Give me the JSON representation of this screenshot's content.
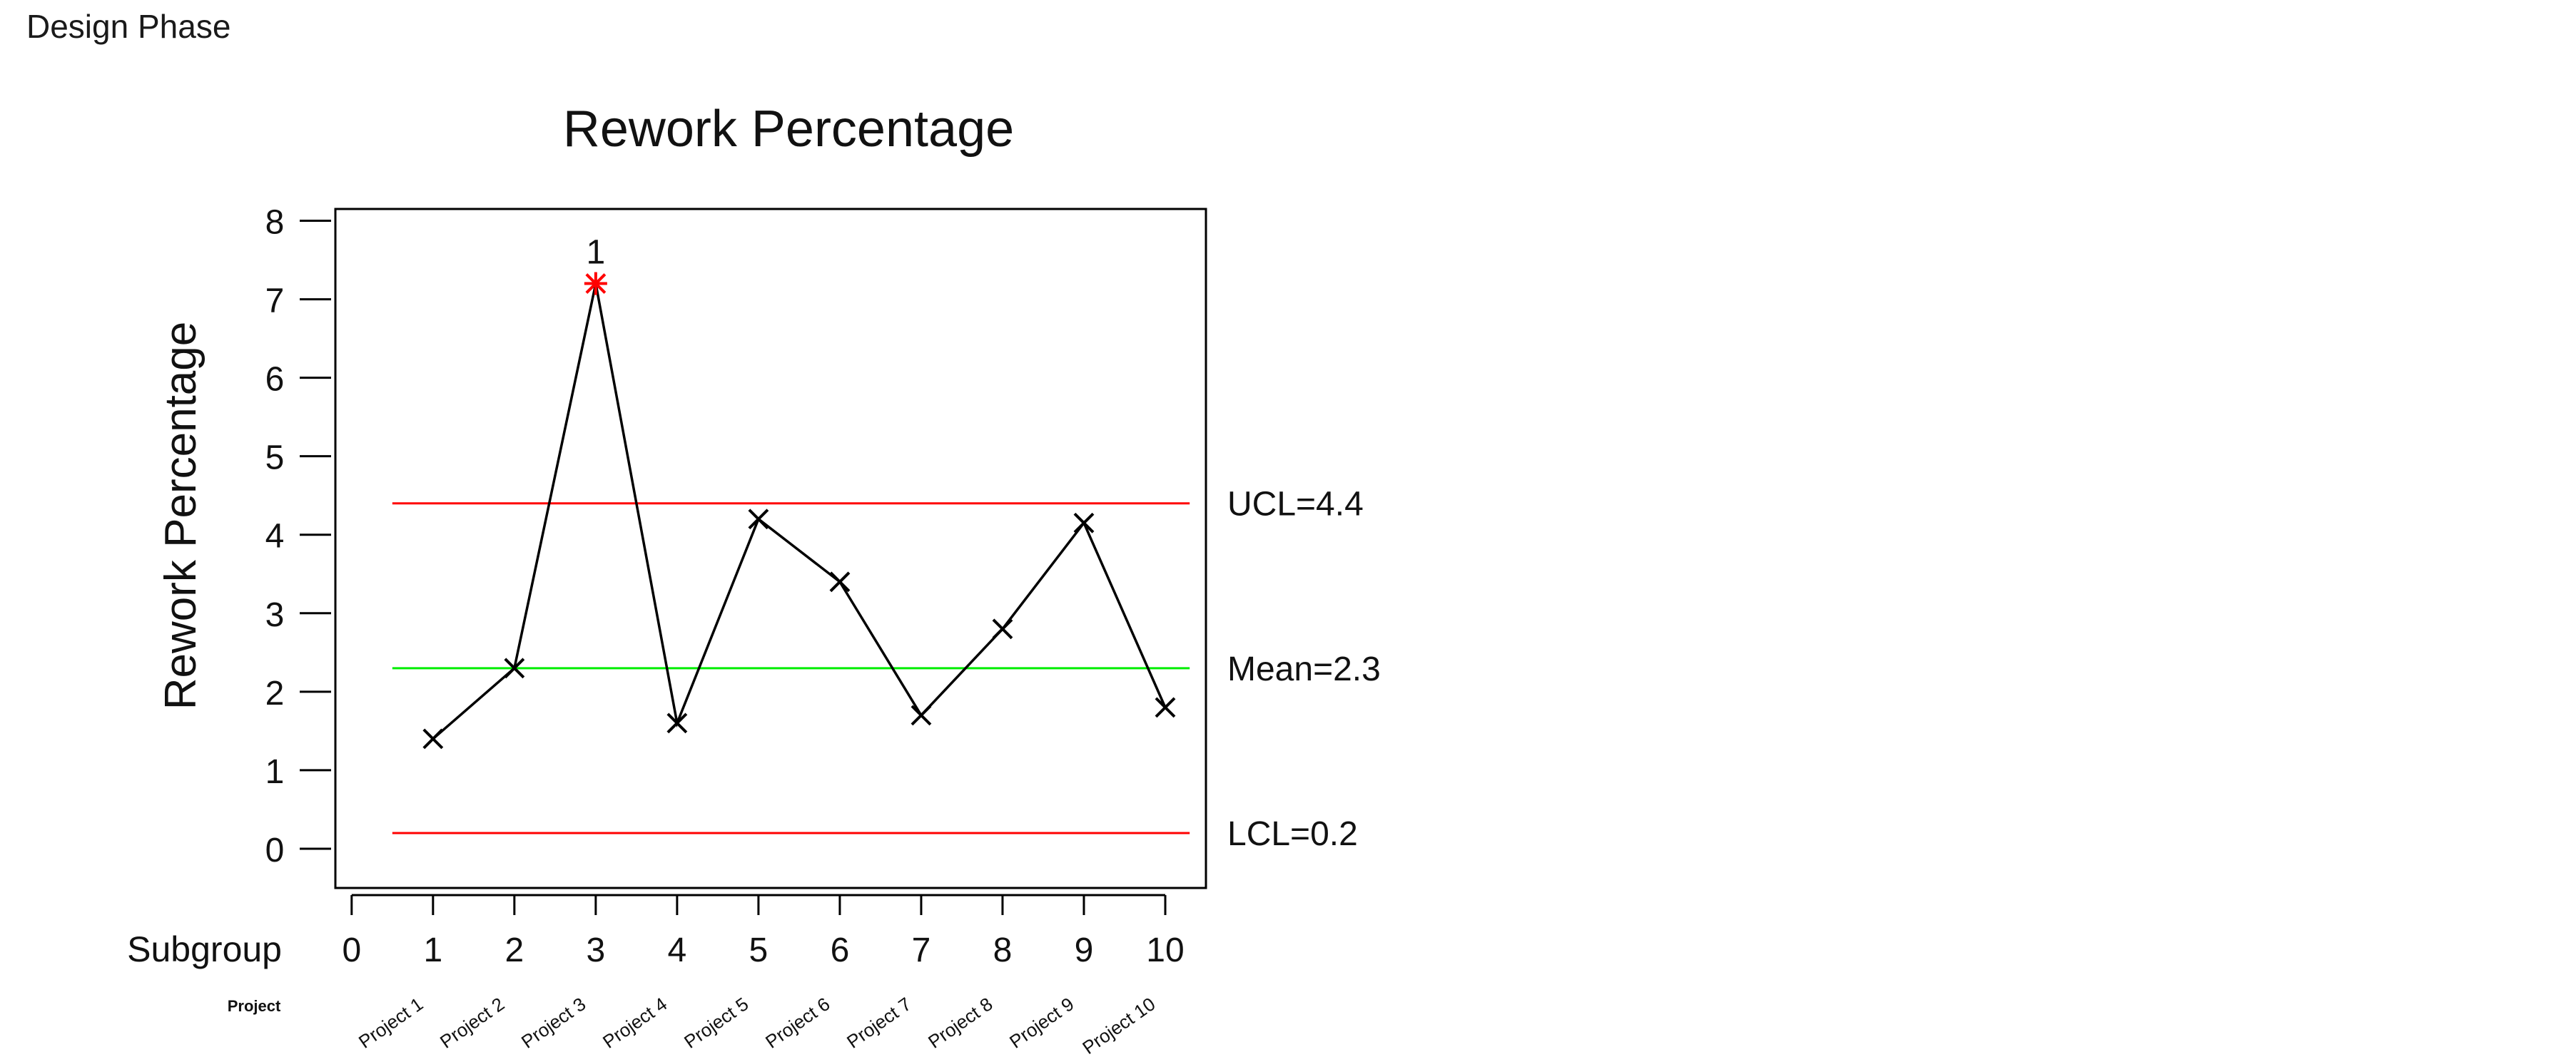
{
  "page": {
    "header": "Design Phase"
  },
  "chart_data": {
    "type": "line",
    "title": "Rework Percentage",
    "ylabel": "Rework Percentage",
    "xlabel": "Subgroup",
    "x_tick_labels": [
      "0",
      "1",
      "2",
      "3",
      "4",
      "5",
      "6",
      "7",
      "8",
      "9",
      "10"
    ],
    "x": [
      1,
      2,
      3,
      4,
      5,
      6,
      7,
      8,
      9,
      10
    ],
    "values": [
      1.4,
      2.3,
      7.2,
      1.6,
      4.2,
      3.4,
      1.7,
      2.8,
      4.15,
      1.8
    ],
    "ylim": [
      -0.5,
      8.15
    ],
    "xlim": [
      -0.2,
      10.5
    ],
    "y_ticks": [
      0,
      1,
      2,
      3,
      4,
      5,
      6,
      7,
      8
    ],
    "grid": false,
    "stage_label": "Project",
    "categories": [
      "Project 1",
      "Project 2",
      "Project 3",
      "Project 4",
      "Project 5",
      "Project 6",
      "Project 7",
      "Project 8",
      "Project 9",
      "Project 10"
    ],
    "control_limits": {
      "ucl": {
        "value": 4.4,
        "label": "UCL=4.4",
        "color": "#ff0000"
      },
      "mean": {
        "value": 2.3,
        "label": "Mean=2.3",
        "color": "#00ee00"
      },
      "lcl": {
        "value": 0.2,
        "label": "LCL=0.2",
        "color": "#ff0000"
      }
    },
    "out_of_control": [
      {
        "index": 2,
        "label": "1",
        "color": "#ff0000"
      }
    ],
    "colors": {
      "series": "#000000",
      "alert": "#ff0000"
    }
  }
}
